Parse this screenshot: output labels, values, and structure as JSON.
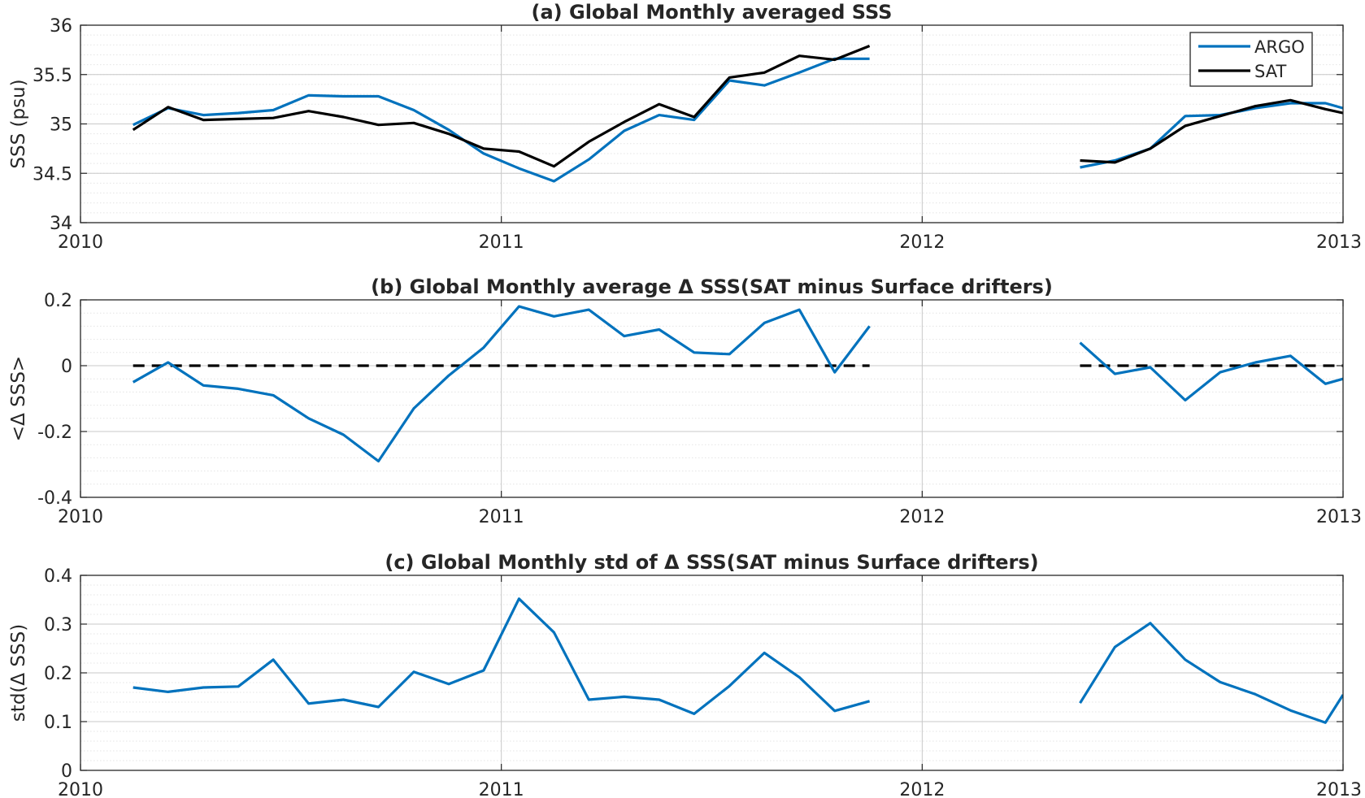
{
  "colors": {
    "argo": "#0072BD",
    "sat": "#000000",
    "grid_major": "#c8c8c8",
    "grid_minor": "#e4e4e4",
    "axis": "#262626"
  },
  "chart_data": [
    {
      "type": "line",
      "title": "(a) Global Monthly averaged SSS",
      "xlabel": "",
      "ylabel": "SSS (psu)",
      "xlim": [
        2010,
        2013
      ],
      "ylim": [
        34,
        36
      ],
      "x_ticks": [
        2010,
        2011,
        2012,
        2013
      ],
      "x_tick_labels": [
        "2010",
        "2011",
        "2012",
        "2013"
      ],
      "y_ticks": [
        34,
        34.5,
        35,
        35.5,
        36
      ],
      "y_tick_labels": [
        "34",
        "34.5",
        "35",
        "35.5",
        "36"
      ],
      "grid": true,
      "minor_grid": true,
      "legend": "top-right",
      "x": [
        2010.125,
        2010.208,
        2010.292,
        2010.375,
        2010.458,
        2010.542,
        2010.625,
        2010.708,
        2010.792,
        2010.875,
        2010.958,
        2011.042,
        2011.125,
        2011.208,
        2011.292,
        2011.375,
        2011.458,
        2011.542,
        2011.625,
        2011.708,
        2011.792,
        2011.875,
        null,
        2012.375,
        2012.458,
        2012.542,
        2012.625,
        2012.708,
        2012.792,
        2012.875,
        2012.958,
        2013.0
      ],
      "series": [
        {
          "name": "ARGO",
          "color": "#0072BD",
          "values": [
            34.99,
            35.16,
            35.09,
            35.11,
            35.14,
            35.29,
            35.28,
            35.28,
            35.14,
            34.94,
            34.7,
            34.55,
            34.42,
            34.64,
            34.93,
            35.09,
            35.04,
            35.44,
            35.39,
            35.52,
            35.66,
            35.66,
            null,
            34.56,
            34.63,
            34.75,
            35.08,
            35.09,
            35.16,
            35.21,
            35.21,
            35.16
          ]
        },
        {
          "name": "SAT",
          "color": "#000000",
          "values": [
            34.94,
            35.17,
            35.04,
            35.05,
            35.06,
            35.13,
            35.07,
            34.99,
            35.01,
            34.9,
            34.75,
            34.72,
            34.57,
            34.82,
            35.02,
            35.2,
            35.07,
            35.47,
            35.52,
            35.69,
            35.65,
            35.79,
            null,
            34.63,
            34.61,
            34.75,
            34.98,
            35.08,
            35.18,
            35.24,
            35.15,
            35.11
          ]
        }
      ]
    },
    {
      "type": "line",
      "title": "(b) Global Monthly average Δ SSS(SAT minus Surface drifters)",
      "xlabel": "",
      "ylabel": "<Δ SSS>",
      "xlim": [
        2010,
        2013
      ],
      "ylim": [
        -0.4,
        0.2
      ],
      "x_ticks": [
        2010,
        2011,
        2012,
        2013
      ],
      "x_tick_labels": [
        "2010",
        "2011",
        "2012",
        "2013"
      ],
      "y_ticks": [
        -0.4,
        -0.2,
        0,
        0.2
      ],
      "y_tick_labels": [
        "-0.4",
        "-0.2",
        "0",
        "0.2"
      ],
      "grid": true,
      "minor_grid": true,
      "x": [
        2010.125,
        2010.208,
        2010.292,
        2010.375,
        2010.458,
        2010.542,
        2010.625,
        2010.708,
        2010.792,
        2010.875,
        2010.958,
        2011.042,
        2011.125,
        2011.208,
        2011.292,
        2011.375,
        2011.458,
        2011.542,
        2011.625,
        2011.708,
        2011.792,
        2011.875,
        null,
        2012.375,
        2012.458,
        2012.542,
        2012.625,
        2012.708,
        2012.792,
        2012.875,
        2012.958,
        2013.0
      ],
      "series": [
        {
          "color": "#0072BD",
          "values": [
            -0.05,
            0.01,
            -0.06,
            -0.07,
            -0.09,
            -0.16,
            -0.21,
            -0.29,
            -0.13,
            -0.03,
            0.055,
            0.18,
            0.15,
            0.17,
            0.09,
            0.11,
            0.04,
            0.035,
            0.13,
            0.17,
            -0.02,
            0.12,
            null,
            0.07,
            -0.025,
            -0.005,
            -0.105,
            -0.02,
            0.01,
            0.03,
            -0.055,
            -0.04
          ]
        }
      ],
      "reference_lines": [
        {
          "style": "dashed",
          "color": "#000000",
          "y": 0,
          "x_ranges": [
            [
              2010.125,
              2011.875
            ],
            [
              2012.375,
              2013.0
            ]
          ]
        }
      ]
    },
    {
      "type": "line",
      "title": "(c) Global Monthly std of Δ SSS(SAT minus Surface drifters)",
      "xlabel": "",
      "ylabel": "std(Δ SSS)",
      "xlim": [
        2010,
        2013
      ],
      "ylim": [
        0,
        0.4
      ],
      "x_ticks": [
        2010,
        2011,
        2012,
        2013
      ],
      "x_tick_labels": [
        "2010",
        "2011",
        "2012",
        "2013"
      ],
      "y_ticks": [
        0,
        0.1,
        0.2,
        0.3,
        0.4
      ],
      "y_tick_labels": [
        "0",
        "0.1",
        "0.2",
        "0.3",
        "0.4"
      ],
      "grid": true,
      "minor_grid": true,
      "x": [
        2010.125,
        2010.208,
        2010.292,
        2010.375,
        2010.458,
        2010.542,
        2010.625,
        2010.708,
        2010.792,
        2010.875,
        2010.958,
        2011.042,
        2011.125,
        2011.208,
        2011.292,
        2011.375,
        2011.458,
        2011.542,
        2011.625,
        2011.708,
        2011.792,
        2011.875,
        null,
        2012.375,
        2012.458,
        2012.542,
        2012.625,
        2012.708,
        2012.792,
        2012.875,
        2012.958,
        2013.0
      ],
      "series": [
        {
          "color": "#0072BD",
          "values": [
            0.17,
            0.161,
            0.17,
            0.172,
            0.227,
            0.137,
            0.145,
            0.13,
            0.202,
            0.177,
            0.205,
            0.352,
            0.283,
            0.145,
            0.151,
            0.145,
            0.116,
            0.173,
            0.241,
            0.191,
            0.122,
            0.142,
            null,
            0.138,
            0.253,
            0.302,
            0.227,
            0.181,
            0.156,
            0.123,
            0.098,
            0.155
          ]
        }
      ]
    }
  ]
}
